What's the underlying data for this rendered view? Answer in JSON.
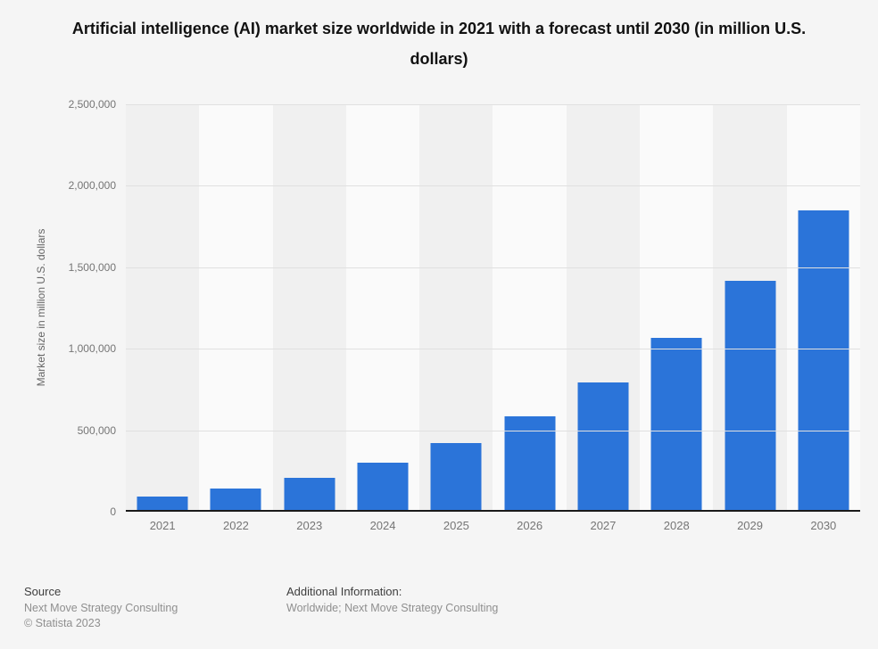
{
  "page": {
    "background": "#f5f5f5"
  },
  "title": "Artificial intelligence (AI) market size worldwide in 2021 with a forecast until 2030 (in million U.S. dollars)",
  "chart_data": {
    "type": "bar",
    "title": "Artificial intelligence (AI) market size worldwide in 2021 with a forecast until 2030 (in million U.S. dollars)",
    "categories": [
      "2021",
      "2022",
      "2023",
      "2024",
      "2025",
      "2026",
      "2027",
      "2028",
      "2029",
      "2030"
    ],
    "values": [
      95600,
      142320,
      207900,
      298250,
      420470,
      582950,
      795390,
      1068950,
      1415580,
      1847500
    ],
    "xlabel": "",
    "ylabel": "Market size in million U.S. dollars",
    "ylim": [
      0,
      2500000
    ],
    "yticks": [
      {
        "value": 0,
        "label": "0"
      },
      {
        "value": 500000,
        "label": "500,000"
      },
      {
        "value": 1000000,
        "label": "1,000,000"
      },
      {
        "value": 1500000,
        "label": "1,500,000"
      },
      {
        "value": 2000000,
        "label": "2,000,000"
      },
      {
        "value": 2500000,
        "label": "2,500,000"
      }
    ],
    "grid": true,
    "legend": "none",
    "bar_color": "#2b74d9",
    "band_colors": [
      "#f0f0f0",
      "#fafafa"
    ],
    "gridline_color": "#e0e0e0",
    "axis_line_color": "#1a1a1a"
  },
  "footer": {
    "source_label": "Source",
    "source_line1": "Next Move Strategy Consulting",
    "source_line2": "© Statista 2023",
    "additional_label": "Additional Information:",
    "additional_line1": "Worldwide; Next Move Strategy Consulting"
  }
}
